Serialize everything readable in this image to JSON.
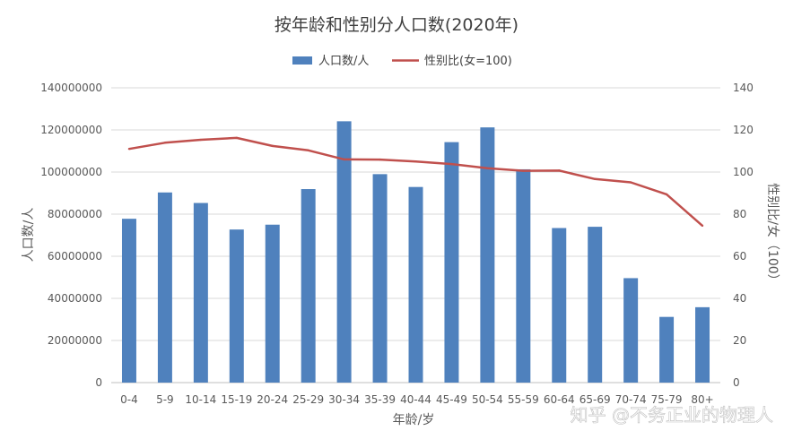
{
  "chart_data": {
    "type": "bar",
    "title": "按年龄和性别分人口数(2020年)",
    "xlabel": "年龄/岁",
    "ylabel": "人口数/人",
    "y2label": "性别比/女（100）",
    "categories": [
      "0-4",
      "5-9",
      "10-14",
      "15-19",
      "20-24",
      "25-29",
      "30-34",
      "35-39",
      "40-44",
      "45-49",
      "50-54",
      "55-59",
      "60-64",
      "65-69",
      "70-74",
      "75-79",
      "80+"
    ],
    "ylim": [
      0,
      140000000
    ],
    "y2lim": [
      0,
      140
    ],
    "yticks": [
      "0",
      "20000000",
      "40000000",
      "60000000",
      "80000000",
      "100000000",
      "120000000",
      "140000000"
    ],
    "y2ticks": [
      "0",
      "20",
      "40",
      "60",
      "80",
      "100",
      "120",
      "140"
    ],
    "series": [
      {
        "name": "人口数/人",
        "type": "bar",
        "axis": "left",
        "color": "#4f81bd",
        "values": [
          77800000,
          90300000,
          85300000,
          72700000,
          75000000,
          91900000,
          124100000,
          99000000,
          92900000,
          114200000,
          121200000,
          101300000,
          73400000,
          74000000,
          49600000,
          31200000,
          35800000
        ]
      },
      {
        "name": "性别比(女=100)",
        "type": "line",
        "axis": "right",
        "color": "#c0504d",
        "values": [
          111,
          113.9,
          115.3,
          116.2,
          112.4,
          110.3,
          106.0,
          105.9,
          105.0,
          103.8,
          101.8,
          100.6,
          100.7,
          96.7,
          95.1,
          89.4,
          74.5
        ]
      }
    ],
    "grid": true,
    "legend": "top"
  },
  "watermark": "知乎 @不务正业的物理人"
}
